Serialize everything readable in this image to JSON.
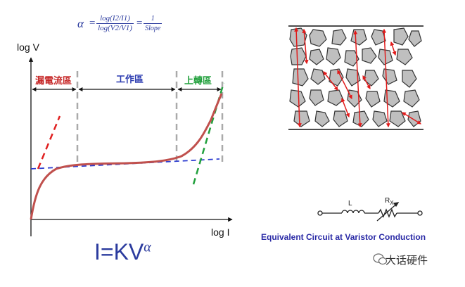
{
  "formula": {
    "lhs": "α",
    "eq": "=",
    "frac1_num": "log(I2/I1)",
    "frac1_den": "log(V2/V1)",
    "frac2_num": "1",
    "frac2_den": "Slope"
  },
  "axes": {
    "ylabel": "log V",
    "xlabel": "log I"
  },
  "regions": [
    {
      "label": "漏電流區",
      "color": "#c62828"
    },
    {
      "label": "工作區",
      "color": "#2b3bb0"
    },
    {
      "label": "上轉區",
      "color": "#21a03c"
    }
  ],
  "power_law": {
    "base": "I=KV",
    "exponent": "α"
  },
  "circuit": {
    "inductor_label": "L",
    "resistor_label_main": "R",
    "resistor_label_sub": "X",
    "caption": "Equivalent Circuit at  Varistor Conduction"
  },
  "watermark": {
    "text": "大话硬件",
    "icon": "wechat-icon"
  },
  "colors": {
    "curve": "#c0504d",
    "arrow": "#e01b1b",
    "grain": "#bfbfbf",
    "dash_grey": "#aaaaaa"
  }
}
